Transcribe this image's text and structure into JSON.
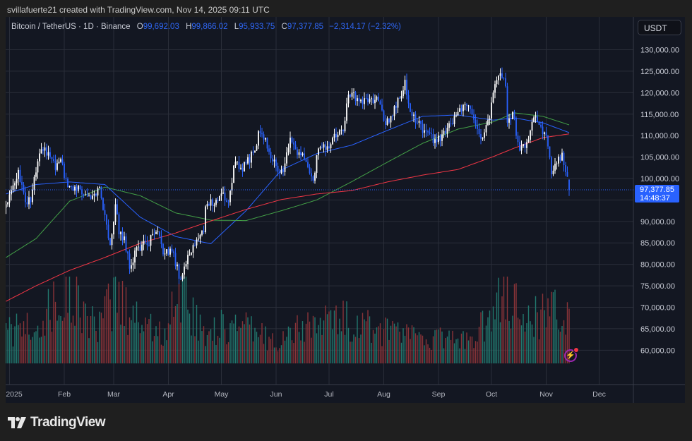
{
  "topbar": {
    "credit": "svillafuerte21 created with TradingView.com, Nov 14, 2025 09:11 UTC"
  },
  "legend": {
    "symbol": "Bitcoin / TetherUS · 1D · Binance",
    "o_label": "O",
    "open": "99,692.03",
    "h_label": "H",
    "high": "99,866.02",
    "l_label": "L",
    "low": "95,933.75",
    "c_label": "C",
    "close": "97,377.85",
    "change": "−2,314.17 (−2.32%)"
  },
  "currency_button": "USDT",
  "last_price": {
    "price": "97,377.85",
    "countdown": "14:48:37",
    "value": 97377.85
  },
  "branding": {
    "logo_text": "TradingView"
  },
  "colors": {
    "up": "#ffffff",
    "down": "#2962ff",
    "ma_blue": "#2962ff",
    "ma_green": "#43a047",
    "ma_red": "#f23645",
    "vol_up": "#22786e",
    "vol_down": "#8a3438",
    "alert_icon": "#9c27b0"
  },
  "chart_data": {
    "type": "candlestick",
    "interval": "1D",
    "y_ticks": [
      "130,000.00",
      "125,000.00",
      "120,000.00",
      "115,000.00",
      "110,000.00",
      "105,000.00",
      "100,000.00",
      "90,000.00",
      "85,000.00",
      "80,000.00",
      "75,000.00",
      "70,000.00",
      "65,000.00",
      "60,000.00"
    ],
    "y_tick_values": [
      130000,
      125000,
      120000,
      115000,
      110000,
      105000,
      100000,
      90000,
      85000,
      80000,
      75000,
      70000,
      65000,
      60000
    ],
    "x_ticks": [
      {
        "label": "2025",
        "date": "2025-01-01"
      },
      {
        "label": "Feb",
        "date": "2025-02-01"
      },
      {
        "label": "Mar",
        "date": "2025-03-01"
      },
      {
        "label": "Apr",
        "date": "2025-04-01"
      },
      {
        "label": "May",
        "date": "2025-05-01"
      },
      {
        "label": "Jun",
        "date": "2025-06-01"
      },
      {
        "label": "Jul",
        "date": "2025-07-01"
      },
      {
        "label": "Aug",
        "date": "2025-08-01"
      },
      {
        "label": "Sep",
        "date": "2025-09-01"
      },
      {
        "label": "Oct",
        "date": "2025-10-01"
      },
      {
        "label": "Nov",
        "date": "2025-11-01"
      },
      {
        "label": "Dec",
        "date": "2025-12-01"
      }
    ],
    "grid": true,
    "approx_closes": [
      [
        "2024-12-30",
        94000
      ],
      [
        "2025-01-06",
        102000
      ],
      [
        "2025-01-10",
        94500
      ],
      [
        "2025-01-13",
        94500
      ],
      [
        "2025-01-17",
        104000
      ],
      [
        "2025-01-20",
        106500
      ],
      [
        "2025-01-24",
        105000
      ],
      [
        "2025-01-27",
        102000
      ],
      [
        "2025-01-30",
        104500
      ],
      [
        "2025-02-03",
        98000
      ],
      [
        "2025-02-10",
        97500
      ],
      [
        "2025-02-17",
        96000
      ],
      [
        "2025-02-21",
        98000
      ],
      [
        "2025-02-24",
        91500
      ],
      [
        "2025-02-27",
        84500
      ],
      [
        "2025-03-02",
        94000
      ],
      [
        "2025-03-04",
        87000
      ],
      [
        "2025-03-07",
        86500
      ],
      [
        "2025-03-10",
        79000
      ],
      [
        "2025-03-14",
        84000
      ],
      [
        "2025-03-20",
        84500
      ],
      [
        "2025-03-25",
        87500
      ],
      [
        "2025-03-30",
        82500
      ],
      [
        "2025-04-03",
        83000
      ],
      [
        "2025-04-08",
        76500
      ],
      [
        "2025-04-10",
        79500
      ],
      [
        "2025-04-15",
        84500
      ],
      [
        "2025-04-21",
        87500
      ],
      [
        "2025-04-22",
        93500
      ],
      [
        "2025-04-28",
        95000
      ],
      [
        "2025-05-01",
        96500
      ],
      [
        "2025-05-05",
        94500
      ],
      [
        "2025-05-08",
        103000
      ],
      [
        "2025-05-12",
        102500
      ],
      [
        "2025-05-15",
        103500
      ],
      [
        "2025-05-20",
        106500
      ],
      [
        "2025-05-22",
        111000
      ],
      [
        "2025-05-26",
        109500
      ],
      [
        "2025-05-30",
        104000
      ],
      [
        "2025-06-05",
        101500
      ],
      [
        "2025-06-09",
        109500
      ],
      [
        "2025-06-13",
        105500
      ],
      [
        "2025-06-17",
        104500
      ],
      [
        "2025-06-22",
        99500
      ],
      [
        "2025-06-25",
        107000
      ],
      [
        "2025-06-30",
        107500
      ],
      [
        "2025-07-03",
        109500
      ],
      [
        "2025-07-09",
        111000
      ],
      [
        "2025-07-11",
        117500
      ],
      [
        "2025-07-14",
        120000
      ],
      [
        "2025-07-18",
        118000
      ],
      [
        "2025-07-24",
        118500
      ],
      [
        "2025-07-29",
        118000
      ],
      [
        "2025-08-02",
        112500
      ],
      [
        "2025-08-08",
        116500
      ],
      [
        "2025-08-13",
        123000
      ],
      [
        "2025-08-15",
        117500
      ],
      [
        "2025-08-19",
        113000
      ],
      [
        "2025-08-25",
        111000
      ],
      [
        "2025-08-31",
        108500
      ],
      [
        "2025-09-05",
        110500
      ],
      [
        "2025-09-12",
        115500
      ],
      [
        "2025-09-18",
        117000
      ],
      [
        "2025-09-22",
        112500
      ],
      [
        "2025-09-26",
        109500
      ],
      [
        "2025-09-30",
        114000
      ],
      [
        "2025-10-03",
        122000
      ],
      [
        "2025-10-06",
        124500
      ],
      [
        "2025-10-09",
        121500
      ],
      [
        "2025-10-10",
        113000
      ],
      [
        "2025-10-13",
        115500
      ],
      [
        "2025-10-16",
        108500
      ],
      [
        "2025-10-17",
        106500
      ],
      [
        "2025-10-21",
        108500
      ],
      [
        "2025-10-26",
        114500
      ],
      [
        "2025-10-28",
        112500
      ],
      [
        "2025-11-01",
        110000
      ],
      [
        "2025-11-04",
        101000
      ],
      [
        "2025-11-07",
        103500
      ],
      [
        "2025-11-10",
        106000
      ],
      [
        "2025-11-12",
        101500
      ],
      [
        "2025-11-14",
        97377.85
      ]
    ],
    "last_candle": {
      "open": 99692.03,
      "high": 99866.02,
      "low": 95933.75,
      "close": 97377.85
    },
    "moving_averages": [
      {
        "color": "#2962ff",
        "values": [
          [
            "2024-12-30",
            96400
          ],
          [
            "2025-01-16",
            98600
          ],
          [
            "2025-02-04",
            99200
          ],
          [
            "2025-02-24",
            98600
          ],
          [
            "2025-03-16",
            91000
          ],
          [
            "2025-04-05",
            86500
          ],
          [
            "2025-04-25",
            84800
          ],
          [
            "2025-05-15",
            92500
          ],
          [
            "2025-06-04",
            102000
          ],
          [
            "2025-06-24",
            105800
          ],
          [
            "2025-07-14",
            107800
          ],
          [
            "2025-08-03",
            111200
          ],
          [
            "2025-08-23",
            114500
          ],
          [
            "2025-09-12",
            114800
          ],
          [
            "2025-10-02",
            113600
          ],
          [
            "2025-10-14",
            114100
          ],
          [
            "2025-10-30",
            113000
          ],
          [
            "2025-11-14",
            110700
          ]
        ]
      },
      {
        "color": "#43a047",
        "values": [
          [
            "2024-12-30",
            81600
          ],
          [
            "2025-01-16",
            86000
          ],
          [
            "2025-02-04",
            94700
          ],
          [
            "2025-02-24",
            98000
          ],
          [
            "2025-03-16",
            96000
          ],
          [
            "2025-04-05",
            92000
          ],
          [
            "2025-04-25",
            90300
          ],
          [
            "2025-05-15",
            90200
          ],
          [
            "2025-06-04",
            92500
          ],
          [
            "2025-06-24",
            95000
          ],
          [
            "2025-07-14",
            99300
          ],
          [
            "2025-08-03",
            103800
          ],
          [
            "2025-08-23",
            108200
          ],
          [
            "2025-09-12",
            111500
          ],
          [
            "2025-10-02",
            113200
          ],
          [
            "2025-10-14",
            115300
          ],
          [
            "2025-10-30",
            114500
          ],
          [
            "2025-11-14",
            112500
          ]
        ]
      },
      {
        "color": "#f23645",
        "values": [
          [
            "2024-12-30",
            71400
          ],
          [
            "2025-01-16",
            75000
          ],
          [
            "2025-02-04",
            78600
          ],
          [
            "2025-02-24",
            81600
          ],
          [
            "2025-03-16",
            84900
          ],
          [
            "2025-04-05",
            87300
          ],
          [
            "2025-04-25",
            90100
          ],
          [
            "2025-05-15",
            92800
          ],
          [
            "2025-06-04",
            95100
          ],
          [
            "2025-06-24",
            96400
          ],
          [
            "2025-07-14",
            97200
          ],
          [
            "2025-08-03",
            99200
          ],
          [
            "2025-08-23",
            100800
          ],
          [
            "2025-09-12",
            102100
          ],
          [
            "2025-10-02",
            105100
          ],
          [
            "2025-10-14",
            107100
          ],
          [
            "2025-10-30",
            109500
          ],
          [
            "2025-11-14",
            110400
          ]
        ]
      }
    ],
    "volume_relative": [
      [
        "2025-01-01",
        0.35
      ],
      [
        "2025-01-20",
        0.5
      ],
      [
        "2025-02-03",
        0.85
      ],
      [
        "2025-02-20",
        0.35
      ],
      [
        "2025-03-01",
        0.75
      ],
      [
        "2025-03-10",
        0.6
      ],
      [
        "2025-03-30",
        0.3
      ],
      [
        "2025-04-07",
        0.95
      ],
      [
        "2025-04-20",
        0.35
      ],
      [
        "2025-05-08",
        0.45
      ],
      [
        "2025-06-01",
        0.25
      ],
      [
        "2025-06-22",
        0.45
      ],
      [
        "2025-07-11",
        0.5
      ],
      [
        "2025-08-01",
        0.35
      ],
      [
        "2025-08-25",
        0.3
      ],
      [
        "2025-09-20",
        0.25
      ],
      [
        "2025-10-10",
        0.85
      ],
      [
        "2025-10-20",
        0.45
      ],
      [
        "2025-11-04",
        0.6
      ],
      [
        "2025-11-14",
        0.45
      ]
    ]
  }
}
